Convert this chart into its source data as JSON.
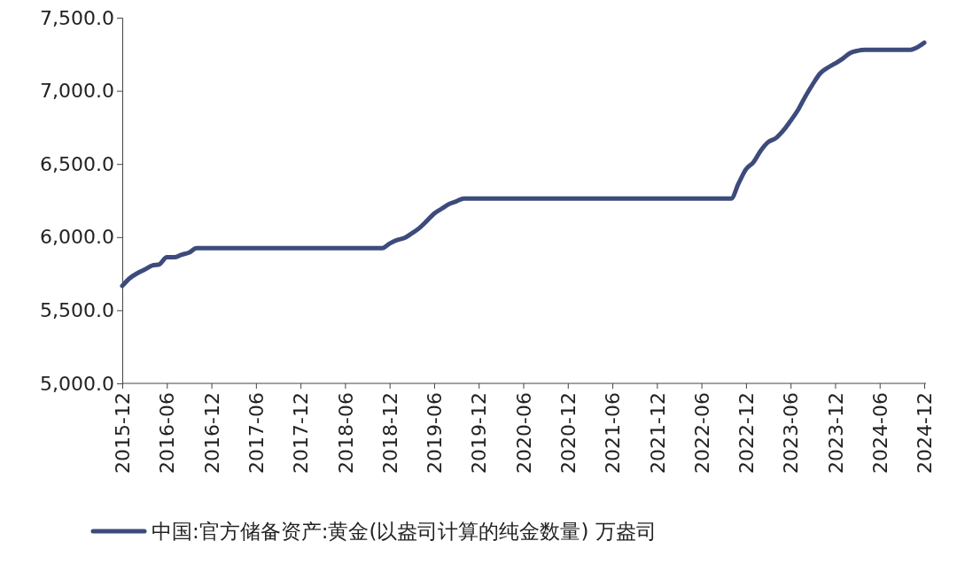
{
  "chart_data": {
    "type": "line",
    "categories": [
      "2015-12",
      null,
      null,
      null,
      null,
      null,
      "2016-06",
      null,
      null,
      null,
      null,
      null,
      "2016-12",
      null,
      null,
      null,
      null,
      null,
      "2017-06",
      null,
      null,
      null,
      null,
      null,
      "2017-12",
      null,
      null,
      null,
      null,
      null,
      "2018-06",
      null,
      null,
      null,
      null,
      null,
      "2018-12",
      null,
      null,
      null,
      null,
      null,
      "2019-06",
      null,
      null,
      null,
      null,
      null,
      "2019-12",
      null,
      null,
      null,
      null,
      null,
      "2020-06",
      null,
      null,
      null,
      null,
      null,
      "2020-12",
      null,
      null,
      null,
      null,
      null,
      "2021-06",
      null,
      null,
      null,
      null,
      null,
      "2021-12",
      null,
      null,
      null,
      null,
      null,
      "2022-06",
      null,
      null,
      null,
      null,
      null,
      "2022-12",
      null,
      null,
      null,
      null,
      null,
      "2023-06",
      null,
      null,
      null,
      null,
      null,
      "2023-12",
      null,
      null,
      null,
      null,
      null,
      "2024-06",
      null,
      null,
      null,
      null,
      null,
      "2024-12"
    ],
    "series": [
      {
        "name": "中国:官方储备资产:黄金(以盎司计算的纯金数量) 万盎司",
        "color": "#3d4b7c",
        "values": [
          5666,
          5719,
          5752,
          5778,
          5805,
          5814,
          5862,
          5862,
          5880,
          5894,
          5924,
          5924,
          5924,
          5924,
          5924,
          5924,
          5924,
          5924,
          5924,
          5924,
          5924,
          5924,
          5924,
          5924,
          5924,
          5924,
          5924,
          5924,
          5924,
          5924,
          5924,
          5924,
          5924,
          5924,
          5924,
          5924,
          5956,
          5980,
          5994,
          6026,
          6062,
          6110,
          6161,
          6194,
          6226,
          6245,
          6264,
          6264,
          6264,
          6264,
          6264,
          6264,
          6264,
          6264,
          6264,
          6264,
          6264,
          6264,
          6264,
          6264,
          6264,
          6264,
          6264,
          6264,
          6264,
          6264,
          6264,
          6264,
          6264,
          6264,
          6264,
          6264,
          6264,
          6264,
          6264,
          6264,
          6264,
          6264,
          6264,
          6264,
          6264,
          6264,
          6264,
          6367,
          6464,
          6512,
          6592,
          6650,
          6676,
          6727,
          6795,
          6869,
          6962,
          7046,
          7120,
          7158,
          7187,
          7219,
          7258,
          7274,
          7280,
          7280,
          7280,
          7280,
          7280,
          7280,
          7280,
          7296,
          7329
        ]
      }
    ],
    "ylim": [
      5000,
      7500
    ],
    "yticks": [
      {
        "value": 5000,
        "label": "5,000.0"
      },
      {
        "value": 5500,
        "label": "5,500.0"
      },
      {
        "value": 6000,
        "label": "6,000.0"
      },
      {
        "value": 6500,
        "label": "6,500.0"
      },
      {
        "value": 7000,
        "label": "7,000.0"
      },
      {
        "value": 7500,
        "label": "7,500.0"
      }
    ],
    "legend": "bottom",
    "grid": false,
    "marker": "none",
    "line_style": "solid"
  }
}
